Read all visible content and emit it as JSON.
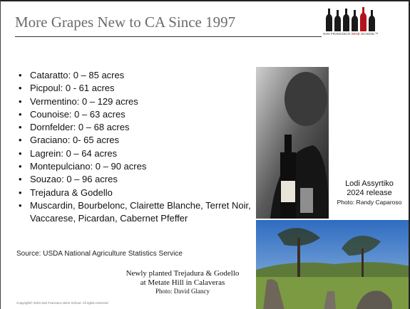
{
  "header": {
    "title": "More Grapes New to CA Since 1997",
    "logo": [
      "SAN FRANCISCO ",
      "WINE",
      " SCHOOL™"
    ]
  },
  "bullets": [
    "Cataratto:  0 – 85 acres",
    "Picpoul:  0 - 61 acres",
    "Vermentino:  0 – 129 acres",
    "Counoise:  0 – 63 acres",
    "Dornfelder:  0 – 68 acres",
    "Graciano:  0- 65 acres",
    "Lagrein:  0 – 64 acres",
    "Montepulciano:  0 – 90 acres",
    "Souzao:  0 – 96 acres",
    "Trejadura & Godello",
    "Muscardin, Bourbelonc, Clairette Blanche, Terret Noir, Vaccarese, Picardan, Cabernet Pfeffer"
  ],
  "source": "Source: USDA National Agriculture Statistics Service",
  "side_caption": [
    "Lodi Assyrtiko",
    "2024 release",
    "Photo: Randy Caparoso"
  ],
  "bottom_caption": [
    "Newly planted Trejadura & Godello",
    "at Metate Hill in Calaveras",
    "Photo: David Glancy"
  ],
  "footer": {
    "copyright": "Copyright© 2023 San Francisco Wine School. All rights reserved"
  }
}
